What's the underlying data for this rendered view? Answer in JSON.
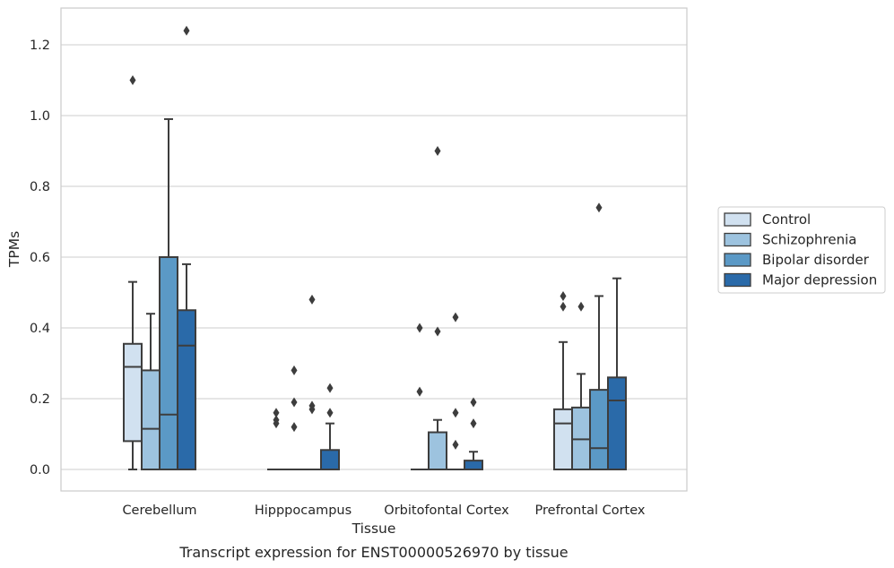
{
  "caption": "Transcript expression for ENST00000526970 by tissue",
  "chart_data": {
    "type": "box",
    "xlabel": "Tissue",
    "ylabel": "TPMs",
    "ylim": [
      -0.06,
      1.31
    ],
    "yticks": [
      "0.0",
      "0.2",
      "0.4",
      "0.6",
      "0.8",
      "1.0",
      "1.2"
    ],
    "grid": "horizontal",
    "legend_position": "right",
    "categories": [
      "Cerebellum",
      "Hipppocampus",
      "Orbitofontal Cortex",
      "Prefrontal Cortex"
    ],
    "series": [
      {
        "name": "Control",
        "color": "#d1e1f0",
        "boxes": [
          {
            "min": 0.0,
            "q1": 0.08,
            "median": 0.29,
            "q3": 0.355,
            "max": 0.53,
            "outliers": [
              1.1
            ]
          },
          {
            "min": 0.0,
            "q1": 0.0,
            "median": 0.0,
            "q3": 0.0,
            "max": 0.0,
            "outliers": [
              0.16,
              0.14,
              0.13
            ]
          },
          {
            "min": 0.0,
            "q1": 0.0,
            "median": 0.0,
            "q3": 0.0,
            "max": 0.0,
            "outliers": [
              0.4,
              0.22
            ]
          },
          {
            "min": 0.0,
            "q1": 0.0,
            "median": 0.13,
            "q3": 0.17,
            "max": 0.36,
            "outliers": [
              0.49,
              0.46
            ]
          }
        ]
      },
      {
        "name": "Schizophrenia",
        "color": "#9dc3df",
        "boxes": [
          {
            "min": 0.0,
            "q1": 0.0,
            "median": 0.115,
            "q3": 0.28,
            "max": 0.44,
            "outliers": []
          },
          {
            "min": 0.0,
            "q1": 0.0,
            "median": 0.0,
            "q3": 0.0,
            "max": 0.0,
            "outliers": [
              0.28,
              0.19,
              0.12
            ]
          },
          {
            "min": 0.0,
            "q1": 0.0,
            "median": 0.0,
            "q3": 0.105,
            "max": 0.14,
            "outliers": [
              0.9,
              0.39
            ]
          },
          {
            "min": 0.0,
            "q1": 0.0,
            "median": 0.085,
            "q3": 0.175,
            "max": 0.27,
            "outliers": [
              0.46
            ]
          }
        ]
      },
      {
        "name": "Bipolar disorder",
        "color": "#5b99c6",
        "boxes": [
          {
            "min": 0.0,
            "q1": 0.0,
            "median": 0.155,
            "q3": 0.6,
            "max": 0.99,
            "outliers": []
          },
          {
            "min": 0.0,
            "q1": 0.0,
            "median": 0.0,
            "q3": 0.0,
            "max": 0.0,
            "outliers": [
              0.48,
              0.18,
              0.17
            ]
          },
          {
            "min": 0.0,
            "q1": 0.0,
            "median": 0.0,
            "q3": 0.0,
            "max": 0.0,
            "outliers": [
              0.43,
              0.16,
              0.07
            ]
          },
          {
            "min": 0.0,
            "q1": 0.0,
            "median": 0.06,
            "q3": 0.225,
            "max": 0.49,
            "outliers": [
              0.74
            ]
          }
        ]
      },
      {
        "name": "Major depression",
        "color": "#2a6aa9",
        "boxes": [
          {
            "min": 0.0,
            "q1": 0.0,
            "median": 0.35,
            "q3": 0.45,
            "max": 0.58,
            "outliers": [
              1.24
            ]
          },
          {
            "min": 0.0,
            "q1": 0.0,
            "median": 0.0,
            "q3": 0.055,
            "max": 0.13,
            "outliers": [
              0.23,
              0.16
            ]
          },
          {
            "min": 0.0,
            "q1": 0.0,
            "median": 0.0,
            "q3": 0.025,
            "max": 0.05,
            "outliers": [
              0.19,
              0.13
            ]
          },
          {
            "min": 0.0,
            "q1": 0.0,
            "median": 0.195,
            "q3": 0.26,
            "max": 0.54,
            "outliers": []
          }
        ]
      }
    ]
  }
}
